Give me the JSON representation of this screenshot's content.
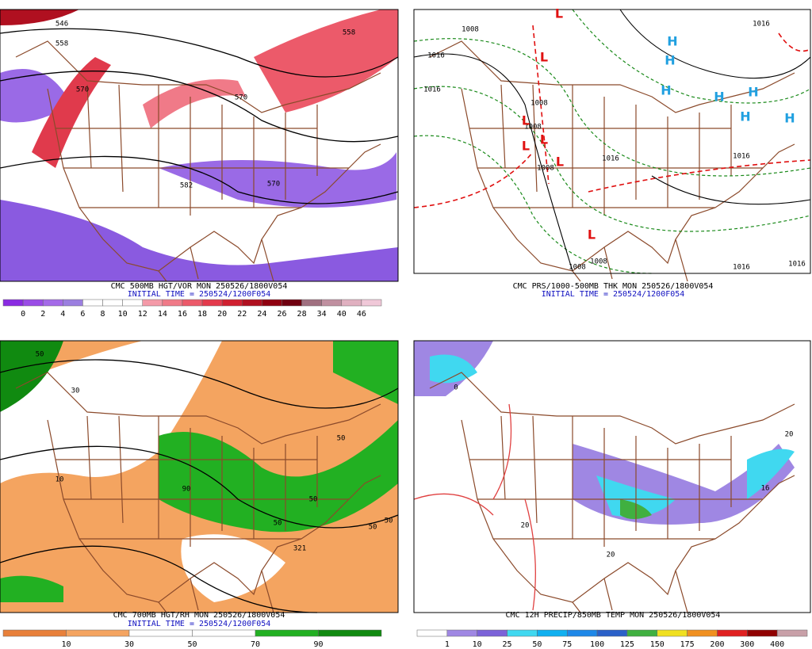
{
  "panels": [
    {
      "caption": "CMC 500MB HGT/VOR MON 250526/1800V054",
      "initial_time": "INITIAL TIME = 250524/1200F054",
      "colorbar": {
        "labels": [
          "0",
          "2",
          "4",
          "6",
          "8",
          "10",
          "12",
          "14",
          "16",
          "18",
          "20",
          "22",
          "24",
          "26",
          "28",
          "34",
          "40",
          "46"
        ],
        "colors": [
          "#8a2be2",
          "#9a4ce6",
          "#a46ae8",
          "#9b7fe0",
          "#ffffff",
          "#ffffff",
          "#ffffff",
          "#f49aa8",
          "#f07a88",
          "#ec5a6a",
          "#e43a4c",
          "#d02030",
          "#b01020",
          "#900010",
          "#700010",
          "#a07080",
          "#c090a0",
          "#e0b0c0",
          "#f0c8d8"
        ]
      },
      "contour_labels": [
        "546",
        "558",
        "570",
        "570",
        "570",
        "582",
        "558"
      ]
    },
    {
      "caption": "CMC PRS/1000-500MB THK MON 250526/1800V054",
      "initial_time": "INITIAL TIME = 250524/1200F054",
      "contour_labels": [
        "1008",
        "1016",
        "1016",
        "1008",
        "1008",
        "1008",
        "1016",
        "1016",
        "1016",
        "1008",
        "1008",
        "1016",
        "1016"
      ],
      "centers": [
        "H",
        "H",
        "H",
        "H",
        "H",
        "H",
        "H",
        "L",
        "L",
        "L",
        "L",
        "L",
        "L",
        "L"
      ]
    },
    {
      "caption": "CMC 700MB HGT/RH MON 250526/1800V054",
      "initial_time": "INITIAL TIME = 250524/1200F054",
      "colorbar": {
        "labels": [
          "10",
          "30",
          "50",
          "70",
          "90"
        ],
        "colors": [
          "#e8803a",
          "#f4a460",
          "#ffffff",
          "#ffffff",
          "#22b022",
          "#108a10"
        ]
      },
      "contour_labels": [
        "50",
        "30",
        "10",
        "90",
        "50",
        "50",
        "50",
        "50",
        "321",
        "50"
      ]
    },
    {
      "caption": "CMC 12H PRECIP/850MB TEMP MON 250526/1800V054",
      "colorbar": {
        "labels": [
          "1",
          "10",
          "25",
          "50",
          "75",
          "100",
          "125",
          "150",
          "175",
          "200",
          "300",
          "400"
        ],
        "colors": [
          "#ffffff",
          "#9f87e3",
          "#7b62d8",
          "#40d8f0",
          "#10b0f0",
          "#1e88e8",
          "#2a60c8",
          "#40b040",
          "#f0e020",
          "#f09020",
          "#e02020",
          "#900000",
          "#c8a0a8"
        ]
      },
      "contour_labels": [
        "0",
        "20",
        "20",
        "16",
        "20"
      ]
    }
  ]
}
